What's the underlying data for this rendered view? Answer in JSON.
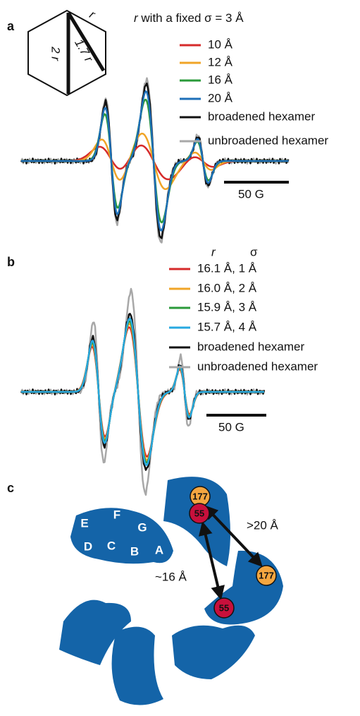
{
  "panel_a": {
    "label": "a",
    "inset": {
      "r": "r",
      "two_r": "2 r",
      "r_diag": "1.7 r"
    },
    "legend_title": {
      "var": "r",
      "text": "with a fixed σ = 3 Å"
    },
    "series": [
      {
        "name": "10 Å",
        "color": "#d62a2a"
      },
      {
        "name": "12 Å",
        "color": "#f0a427"
      },
      {
        "name": "16 Å",
        "color": "#2a9a3a"
      },
      {
        "name": "20 Å",
        "color": "#1d6fb8"
      },
      {
        "name": "broadened hexamer",
        "color": "#111111"
      },
      {
        "name": "unbroadened hexamer",
        "color": "#a8a8a8"
      }
    ],
    "scale_bar": "50 G"
  },
  "panel_b": {
    "label": "b",
    "header": {
      "r": "r",
      "sigma": "σ"
    },
    "series": [
      {
        "name": "16.1 Å,  1 Å",
        "color": "#d62a2a"
      },
      {
        "name": "16.0 Å,  2 Å",
        "color": "#f0a427"
      },
      {
        "name": "15.9 Å,  3 Å",
        "color": "#2a9a3a"
      },
      {
        "name": "15.7 Å,  4 Å",
        "color": "#27a8e0"
      },
      {
        "name": "broadened hexamer",
        "color": "#111111"
      },
      {
        "name": "unbroadened hexamer",
        "color": "#a8a8a8"
      }
    ],
    "scale_bar": "50 G"
  },
  "panel_c": {
    "label": "c",
    "helices": [
      "E",
      "F",
      "G",
      "D",
      "C",
      "B",
      "A"
    ],
    "residues": [
      "177",
      "177",
      "55",
      "55"
    ],
    "distances": [
      ">20 Å",
      "~16 Å"
    ]
  }
}
